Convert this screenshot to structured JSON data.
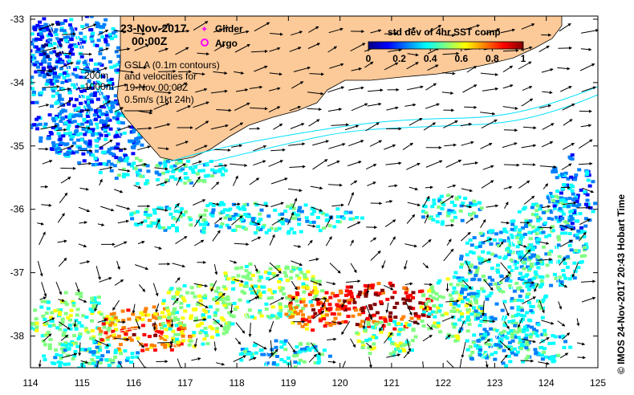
{
  "map": {
    "date": "23-Nov-2017",
    "time": "00:00Z",
    "legend": {
      "glider": "Glider",
      "argo": "Argo",
      "glider_color": "#ff00ff",
      "argo_color": "#ff00ff"
    },
    "gsla_lines": [
      "GSLA (0.1m contours)",
      "and velocities for",
      "19-Nov 00:00Z",
      "0.5m/s (1kt 24h)"
    ],
    "depth_labels": [
      "200m",
      "1000m"
    ],
    "colorbar": {
      "title": "std dev of 4hr SST comp",
      "ticks": [
        "0",
        "0.2",
        "0.4",
        "0.6",
        "0.8",
        "1"
      ],
      "colors": [
        "#000080",
        "#0000ff",
        "#0080ff",
        "#00ffff",
        "#80ff80",
        "#ffff00",
        "#ff8000",
        "#ff0000",
        "#800000"
      ]
    },
    "x_ticks": [
      "114",
      "115",
      "116",
      "117",
      "118",
      "119",
      "120",
      "121",
      "122",
      "123",
      "124",
      "125"
    ],
    "y_ticks": [
      "-33",
      "-34",
      "-35",
      "-36",
      "-37",
      "-38"
    ],
    "credit": "© IMOS 24-Nov-2017 20:43 Hobart Time",
    "land_color": "#fcc998",
    "contour_color": "#00e0ff"
  }
}
